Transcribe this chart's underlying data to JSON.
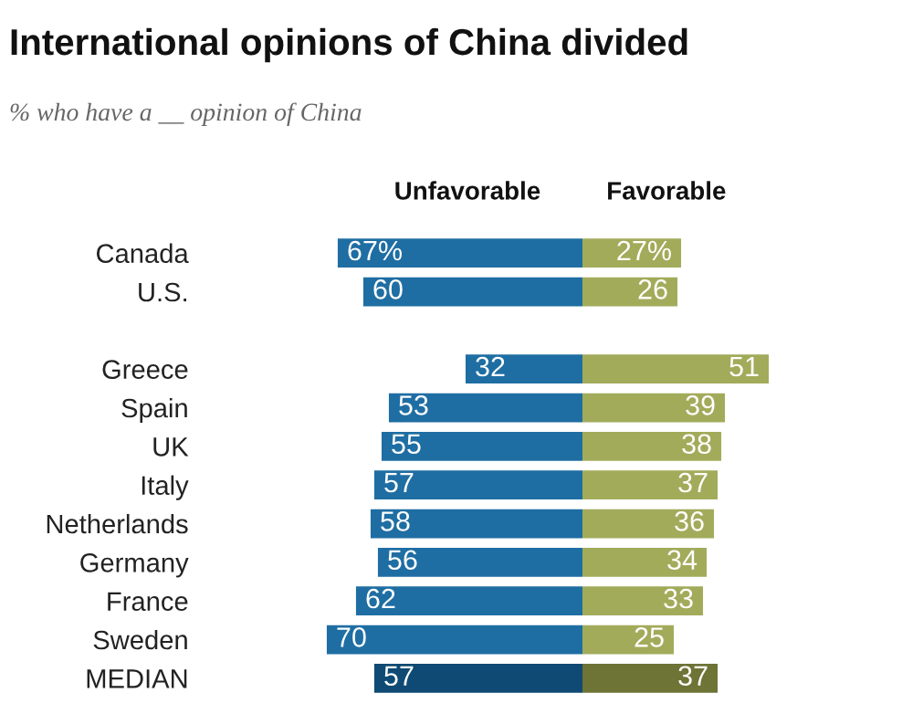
{
  "chart_data": [
    {
      "type": "bar",
      "orientation": "horizontal",
      "title": "International opinions of China divided",
      "subtitle": "% who have a __ opinion of China",
      "categories": [
        "Canada",
        "U.S.",
        null,
        "Greece",
        "Spain",
        "UK",
        "Italy",
        "Netherlands",
        "Germany",
        "France",
        "Sweden",
        "MEDIAN"
      ],
      "series": [
        {
          "name": "Unfavorable",
          "colors": [
            "#1f6ea3",
            "#1f6ea3",
            null,
            "#1f6ea3",
            "#1f6ea3",
            "#1f6ea3",
            "#1f6ea3",
            "#1f6ea3",
            "#1f6ea3",
            "#1f6ea3",
            "#1f6ea3",
            "#0e4a73"
          ],
          "values": [
            67,
            60,
            null,
            32,
            53,
            55,
            57,
            58,
            56,
            62,
            70,
            57
          ],
          "value_labels": [
            "67%",
            "60",
            null,
            "32",
            "53",
            "55",
            "57",
            "58",
            "56",
            "62",
            "70",
            "57"
          ]
        }
      ],
      "tick_labels": "y"
    },
    {
      "type": "bar",
      "orientation": "horizontal",
      "categories": [
        null,
        null,
        null,
        null,
        null,
        null,
        null,
        null,
        null,
        null,
        null,
        null
      ],
      "series": [
        {
          "name": "Favorable",
          "colors": [
            "#a2ab5a",
            "#a2ab5a",
            null,
            "#a2ab5a",
            "#a2ab5a",
            "#a2ab5a",
            "#a2ab5a",
            "#a2ab5a",
            "#a2ab5a",
            "#a2ab5a",
            "#a2ab5a",
            "#6e7336"
          ],
          "values": [
            27,
            26,
            null,
            51,
            39,
            38,
            37,
            36,
            34,
            33,
            25,
            37
          ],
          "value_labels": [
            "27%",
            "26",
            null,
            "51",
            "39",
            "38",
            "37",
            "36",
            "34",
            "33",
            "25",
            "37"
          ]
        }
      ],
      "tick_labels": false
    }
  ]
}
